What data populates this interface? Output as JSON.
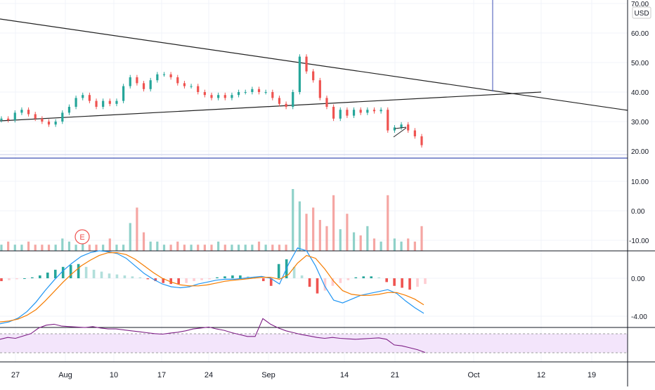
{
  "chart_data": {
    "type": "candlestick",
    "currency_label": "USD",
    "colors": {
      "up": "#26a69a",
      "down": "#ef5350",
      "volume_up": "#8fd1c9",
      "volume_down": "#f5a6a3",
      "macd": "#2196f3",
      "signal": "#f57c00",
      "rsi": "#7e1f86",
      "rsi_band": "#f3e5fb",
      "hline": "#3f51b5"
    },
    "x_ticks": [
      "27",
      "Aug",
      "10",
      "17",
      "24",
      "Sep",
      "14",
      "21",
      "Oct",
      "12",
      "19"
    ],
    "price_axis": {
      "ticks": [
        "70.00",
        "60.00",
        "50.00",
        "40.00",
        "30.00",
        "20.00"
      ],
      "range": [
        17,
        70
      ]
    },
    "volume_axis": {
      "ticks": [
        "10.00",
        "0.00",
        "-10.00"
      ]
    },
    "macd_axis": {
      "ticks": [
        "0.00",
        "-4.00"
      ]
    },
    "earnings_marker": "E",
    "price_close": [
      31,
      30.5,
      33,
      34,
      32.5,
      31,
      30,
      29,
      30,
      33,
      35,
      38,
      39,
      37,
      35,
      37,
      36,
      37,
      42,
      45,
      43,
      41,
      44,
      46,
      46,
      45,
      43,
      42,
      42,
      40,
      39,
      38,
      39,
      38,
      39,
      40,
      40,
      41,
      40,
      40,
      38,
      36,
      35,
      40,
      52,
      47,
      44,
      38,
      35,
      31,
      34,
      32,
      34,
      33,
      34,
      33.5,
      34,
      27,
      28,
      29,
      27,
      25,
      22
    ],
    "volume": [
      2,
      3,
      2,
      2,
      3,
      2,
      2,
      2,
      2,
      4,
      3,
      2,
      3,
      2,
      2,
      2,
      4,
      2,
      2,
      9,
      14,
      6,
      3,
      3,
      2,
      2,
      3,
      2,
      2,
      2,
      2,
      2,
      3,
      2,
      2,
      2,
      2,
      2,
      3,
      2,
      2,
      2,
      2,
      20,
      16,
      12,
      14,
      10,
      8,
      18,
      7,
      12,
      6,
      5,
      8,
      4,
      3,
      18,
      4,
      3,
      4,
      3,
      8
    ],
    "macd_hist": [
      -0.3,
      -0.2,
      -0.1,
      0,
      0.1,
      0.3,
      0.6,
      0.9,
      1.2,
      1.4,
      1.5,
      1.2,
      0.9,
      0.7,
      0.5,
      0.4,
      0.3,
      0.2,
      0.1,
      -0.1,
      -0.3,
      -0.5,
      -0.6,
      -0.6,
      -0.5,
      -0.3,
      -0.2,
      -0.1,
      0.1,
      0.2,
      0.3,
      0.3,
      0.2,
      0.1,
      -0.3,
      -0.8,
      1.5,
      2.0,
      1.2,
      0.3,
      -0.9,
      -1.6,
      -1.3,
      -0.8,
      -0.5,
      -0.2,
      0.1,
      0.2,
      0.2,
      0.1,
      -0.4,
      -0.8,
      -1.0,
      -1.2,
      -0.9,
      -0.6
    ],
    "macd_line": [
      -4.8,
      -4.6,
      -4.2,
      -3.5,
      -2.5,
      -1.3,
      -0.2,
      0.8,
      1.6,
      2.3,
      2.7,
      2.9,
      2.8,
      2.6,
      2.1,
      1.3,
      0.5,
      -0.1,
      -0.6,
      -0.9,
      -1.0,
      -0.9,
      -0.6,
      -0.4,
      -0.2,
      -0.1,
      -0.1,
      0.0,
      0.1,
      0.2,
      0.0,
      -0.6,
      1.5,
      3.2,
      2.9,
      1.3,
      -0.8,
      -2.3,
      -2.6,
      -2.2,
      -1.8,
      -1.6,
      -1.4,
      -1.2,
      -1.6,
      -2.4,
      -3.1,
      -3.7
    ],
    "signal_line": [
      -4.6,
      -4.5,
      -4.3,
      -3.9,
      -3.3,
      -2.4,
      -1.4,
      -0.4,
      0.5,
      1.3,
      1.9,
      2.4,
      2.7,
      2.7,
      2.5,
      2.0,
      1.3,
      0.6,
      0.0,
      -0.4,
      -0.7,
      -0.8,
      -0.8,
      -0.7,
      -0.5,
      -0.3,
      -0.2,
      -0.1,
      0.0,
      0.1,
      0.1,
      -0.1,
      0.4,
      1.6,
      2.4,
      2.1,
      1.0,
      -0.3,
      -1.3,
      -1.7,
      -1.8,
      -1.8,
      -1.7,
      -1.5,
      -1.5,
      -1.8,
      -2.2,
      -2.8
    ],
    "rsi": [
      48,
      52,
      50,
      55,
      60,
      72,
      78,
      80,
      76,
      75,
      74,
      73,
      75,
      72,
      70,
      70,
      68,
      66,
      64,
      62,
      60,
      59,
      61,
      63,
      66,
      70,
      72,
      74,
      70,
      67,
      62,
      58,
      54,
      54,
      92,
      80,
      72,
      66,
      62,
      58,
      55,
      52,
      50,
      52,
      50,
      49,
      48,
      49,
      50,
      51,
      48,
      36,
      34,
      30,
      26,
      20
    ],
    "rsi_range": [
      0,
      100
    ],
    "rsi_band": [
      30,
      70
    ]
  }
}
